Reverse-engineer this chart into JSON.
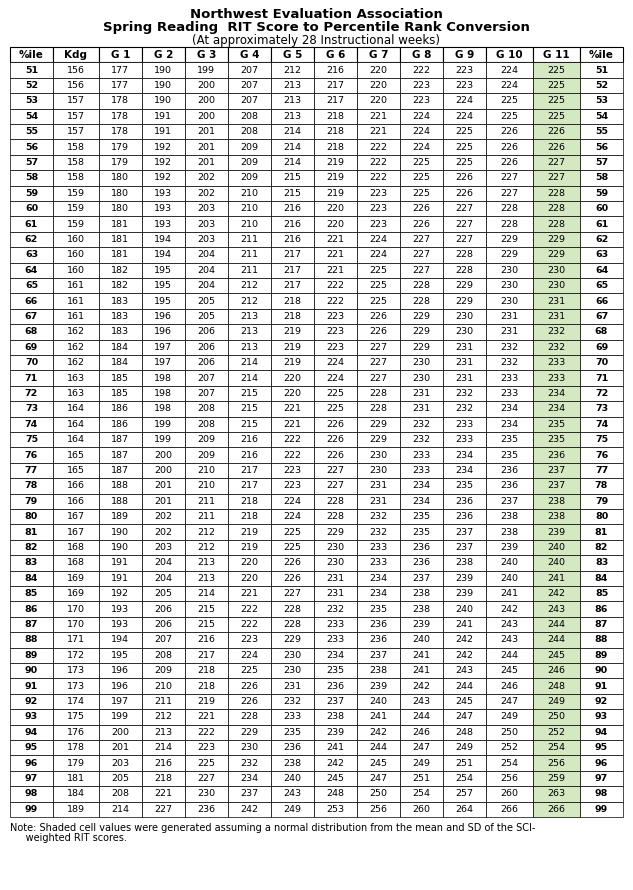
{
  "title1": "Northwest Evaluation Association",
  "title2": "Spring Reading  RIT Score to Percentile Rank Conversion",
  "title3": "(At approximately 28 Instructional weeks)",
  "note1": "Note: Shaded cell values were generated assuming a normal distribution from the mean and SD of the SCI-",
  "note2": "     weighted RIT scores.",
  "headers": [
    "%ile",
    "Kdg",
    "G 1",
    "G 2",
    "G 3",
    "G 4",
    "G 5",
    "G 6",
    "G 7",
    "G 8",
    "G 9",
    "G 10",
    "G 11",
    "%ile"
  ],
  "data": [
    [
      51,
      156,
      177,
      190,
      199,
      207,
      212,
      216,
      220,
      222,
      223,
      224,
      225,
      51
    ],
    [
      52,
      156,
      177,
      190,
      200,
      207,
      213,
      217,
      220,
      223,
      223,
      224,
      225,
      52
    ],
    [
      53,
      157,
      178,
      190,
      200,
      207,
      213,
      217,
      220,
      223,
      224,
      225,
      225,
      53
    ],
    [
      54,
      157,
      178,
      191,
      200,
      208,
      213,
      218,
      221,
      224,
      224,
      225,
      225,
      54
    ],
    [
      55,
      157,
      178,
      191,
      201,
      208,
      214,
      218,
      221,
      224,
      225,
      226,
      226,
      55
    ],
    [
      56,
      158,
      179,
      192,
      201,
      209,
      214,
      218,
      222,
      224,
      225,
      226,
      226,
      56
    ],
    [
      57,
      158,
      179,
      192,
      201,
      209,
      214,
      219,
      222,
      225,
      225,
      226,
      227,
      57
    ],
    [
      58,
      158,
      180,
      192,
      202,
      209,
      215,
      219,
      222,
      225,
      226,
      227,
      227,
      58
    ],
    [
      59,
      159,
      180,
      193,
      202,
      210,
      215,
      219,
      223,
      225,
      226,
      227,
      228,
      59
    ],
    [
      60,
      159,
      180,
      193,
      203,
      210,
      216,
      220,
      223,
      226,
      227,
      228,
      228,
      60
    ],
    [
      61,
      159,
      181,
      193,
      203,
      210,
      216,
      220,
      223,
      226,
      227,
      228,
      228,
      61
    ],
    [
      62,
      160,
      181,
      194,
      203,
      211,
      216,
      221,
      224,
      227,
      227,
      229,
      229,
      62
    ],
    [
      63,
      160,
      181,
      194,
      204,
      211,
      217,
      221,
      224,
      227,
      228,
      229,
      229,
      63
    ],
    [
      64,
      160,
      182,
      195,
      204,
      211,
      217,
      221,
      225,
      227,
      228,
      230,
      230,
      64
    ],
    [
      65,
      161,
      182,
      195,
      204,
      212,
      217,
      222,
      225,
      228,
      229,
      230,
      230,
      65
    ],
    [
      66,
      161,
      183,
      195,
      205,
      212,
      218,
      222,
      225,
      228,
      229,
      230,
      231,
      66
    ],
    [
      67,
      161,
      183,
      196,
      205,
      213,
      218,
      223,
      226,
      229,
      230,
      231,
      231,
      67
    ],
    [
      68,
      162,
      183,
      196,
      206,
      213,
      219,
      223,
      226,
      229,
      230,
      231,
      232,
      68
    ],
    [
      69,
      162,
      184,
      197,
      206,
      213,
      219,
      223,
      227,
      229,
      231,
      232,
      232,
      69
    ],
    [
      70,
      162,
      184,
      197,
      206,
      214,
      219,
      224,
      227,
      230,
      231,
      232,
      233,
      70
    ],
    [
      71,
      163,
      185,
      198,
      207,
      214,
      220,
      224,
      227,
      230,
      231,
      233,
      233,
      71
    ],
    [
      72,
      163,
      185,
      198,
      207,
      215,
      220,
      225,
      228,
      231,
      232,
      233,
      234,
      72
    ],
    [
      73,
      164,
      186,
      198,
      208,
      215,
      221,
      225,
      228,
      231,
      232,
      234,
      234,
      73
    ],
    [
      74,
      164,
      186,
      199,
      208,
      215,
      221,
      226,
      229,
      232,
      233,
      234,
      235,
      74
    ],
    [
      75,
      164,
      187,
      199,
      209,
      216,
      222,
      226,
      229,
      232,
      233,
      235,
      235,
      75
    ],
    [
      76,
      165,
      187,
      200,
      209,
      216,
      222,
      226,
      230,
      233,
      234,
      235,
      236,
      76
    ],
    [
      77,
      165,
      187,
      200,
      210,
      217,
      223,
      227,
      230,
      233,
      234,
      236,
      237,
      77
    ],
    [
      78,
      166,
      188,
      201,
      210,
      217,
      223,
      227,
      231,
      234,
      235,
      236,
      237,
      78
    ],
    [
      79,
      166,
      188,
      201,
      211,
      218,
      224,
      228,
      231,
      234,
      236,
      237,
      238,
      79
    ],
    [
      80,
      167,
      189,
      202,
      211,
      218,
      224,
      228,
      232,
      235,
      236,
      238,
      238,
      80
    ],
    [
      81,
      167,
      190,
      202,
      212,
      219,
      225,
      229,
      232,
      235,
      237,
      238,
      239,
      81
    ],
    [
      82,
      168,
      190,
      203,
      212,
      219,
      225,
      230,
      233,
      236,
      237,
      239,
      240,
      82
    ],
    [
      83,
      168,
      191,
      204,
      213,
      220,
      226,
      230,
      233,
      236,
      238,
      240,
      240,
      83
    ],
    [
      84,
      169,
      191,
      204,
      213,
      220,
      226,
      231,
      234,
      237,
      239,
      240,
      241,
      84
    ],
    [
      85,
      169,
      192,
      205,
      214,
      221,
      227,
      231,
      234,
      238,
      239,
      241,
      242,
      85
    ],
    [
      86,
      170,
      193,
      206,
      215,
      222,
      228,
      232,
      235,
      238,
      240,
      242,
      243,
      86
    ],
    [
      87,
      170,
      193,
      206,
      215,
      222,
      228,
      233,
      236,
      239,
      241,
      243,
      244,
      87
    ],
    [
      88,
      171,
      194,
      207,
      216,
      223,
      229,
      233,
      236,
      240,
      242,
      243,
      244,
      88
    ],
    [
      89,
      172,
      195,
      208,
      217,
      224,
      230,
      234,
      237,
      241,
      242,
      244,
      245,
      89
    ],
    [
      90,
      173,
      196,
      209,
      218,
      225,
      230,
      235,
      238,
      241,
      243,
      245,
      246,
      90
    ],
    [
      91,
      173,
      196,
      210,
      218,
      226,
      231,
      236,
      239,
      242,
      244,
      246,
      248,
      91
    ],
    [
      92,
      174,
      197,
      211,
      219,
      226,
      232,
      237,
      240,
      243,
      245,
      247,
      249,
      92
    ],
    [
      93,
      175,
      199,
      212,
      221,
      228,
      233,
      238,
      241,
      244,
      247,
      249,
      250,
      93
    ],
    [
      94,
      176,
      200,
      213,
      222,
      229,
      235,
      239,
      242,
      246,
      248,
      250,
      252,
      94
    ],
    [
      95,
      178,
      201,
      214,
      223,
      230,
      236,
      241,
      244,
      247,
      249,
      252,
      254,
      95
    ],
    [
      96,
      179,
      203,
      216,
      225,
      232,
      238,
      242,
      245,
      249,
      251,
      254,
      256,
      96
    ],
    [
      97,
      181,
      205,
      218,
      227,
      234,
      240,
      245,
      247,
      251,
      254,
      256,
      259,
      97
    ],
    [
      98,
      184,
      208,
      221,
      230,
      237,
      243,
      248,
      250,
      254,
      257,
      260,
      263,
      98
    ],
    [
      99,
      189,
      214,
      227,
      236,
      242,
      249,
      253,
      256,
      260,
      264,
      266,
      266,
      99
    ]
  ],
  "shaded_col_index": 12,
  "shaded_color": "#d4e8c2",
  "border_color": "#000000",
  "data_font_size": 6.8,
  "header_font_size": 7.5,
  "title1_fontsize": 9.5,
  "title2_fontsize": 9.5,
  "title3_fontsize": 8.5,
  "note_fontsize": 7.0
}
